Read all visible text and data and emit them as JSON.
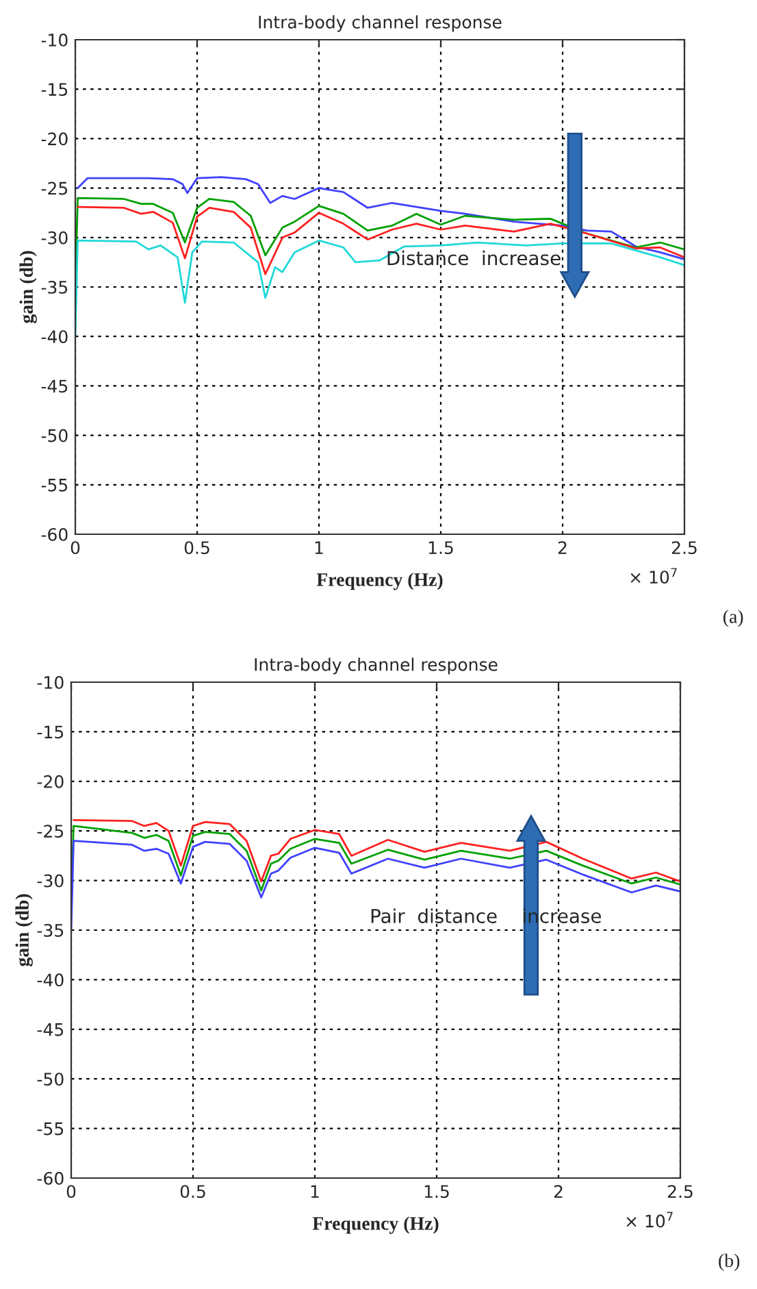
{
  "chart_data": [
    {
      "type": "line",
      "title": "Intra-body channel response",
      "xlabel": "Frequency (Hz)",
      "ylabel": "gain (db)",
      "xlim": [
        0,
        2.5
      ],
      "xticks": [
        0,
        0.5,
        1,
        1.5,
        2,
        2.5
      ],
      "ylim": [
        -60,
        -10
      ],
      "yticks": [
        -60,
        -55,
        -50,
        -45,
        -40,
        -35,
        -30,
        -25,
        -20,
        -15,
        -10
      ],
      "grid": true,
      "legend": false,
      "annotations": [
        "× 10$^{7}$",
        "Distance  increase",
        "(a)"
      ],
      "series": [
        {
          "color": "#4040ff",
          "x": [
            0.01,
            0.05,
            0.3,
            0.4,
            0.44,
            0.46,
            0.5,
            0.6,
            0.7,
            0.75,
            0.8,
            0.85,
            0.9,
            1.0,
            1.1,
            1.2,
            1.3,
            1.5,
            1.6,
            1.8,
            2.0,
            2.1,
            2.2,
            2.3,
            2.4,
            2.5
          ],
          "values": [
            -25,
            -24,
            -24,
            -24.1,
            -24.6,
            -25.5,
            -24,
            -23.9,
            -24.1,
            -24.6,
            -26.5,
            -25.8,
            -26.1,
            -25,
            -25.4,
            -27,
            -26.5,
            -27.3,
            -27.6,
            -28.4,
            -28.8,
            -29.3,
            -29.4,
            -30.9,
            -31.5,
            -32.2
          ]
        },
        {
          "color": "#00a000",
          "x": [
            0,
            0.01,
            0.2,
            0.27,
            0.32,
            0.4,
            0.45,
            0.5,
            0.55,
            0.65,
            0.72,
            0.78,
            0.85,
            0.9,
            1.0,
            1.1,
            1.2,
            1.3,
            1.4,
            1.5,
            1.6,
            1.8,
            1.95,
            2.1,
            2.3,
            2.4,
            2.5
          ],
          "values": [
            -35,
            -26,
            -26.1,
            -26.6,
            -26.6,
            -27.5,
            -30.5,
            -27,
            -26.1,
            -26.4,
            -27.8,
            -31.8,
            -29,
            -28.4,
            -26.8,
            -27.6,
            -29.3,
            -28.8,
            -27.6,
            -28.7,
            -27.8,
            -28.2,
            -28.1,
            -29.6,
            -31,
            -30.5,
            -31.2
          ]
        },
        {
          "color": "#ff2020",
          "x": [
            0.01,
            0.2,
            0.27,
            0.32,
            0.4,
            0.45,
            0.5,
            0.55,
            0.65,
            0.72,
            0.78,
            0.85,
            0.9,
            1.0,
            1.1,
            1.2,
            1.3,
            1.4,
            1.5,
            1.6,
            1.8,
            1.95,
            2.1,
            2.3,
            2.4,
            2.5
          ],
          "values": [
            -26.9,
            -27,
            -27.6,
            -27.4,
            -28.5,
            -32.1,
            -27.9,
            -27,
            -27.4,
            -29,
            -33.7,
            -30,
            -29.5,
            -27.5,
            -28.6,
            -30.2,
            -29.2,
            -28.6,
            -29.2,
            -28.8,
            -29.4,
            -28.6,
            -29.6,
            -31.1,
            -31,
            -32
          ]
        },
        {
          "color": "#20d8d8",
          "x": [
            0,
            0.01,
            0.25,
            0.3,
            0.35,
            0.42,
            0.45,
            0.48,
            0.52,
            0.65,
            0.75,
            0.78,
            0.82,
            0.85,
            0.9,
            1.0,
            1.1,
            1.15,
            1.25,
            1.35,
            1.5,
            1.65,
            1.85,
            2.0,
            2.2,
            2.3,
            2.4,
            2.5
          ],
          "values": [
            -40,
            -30.3,
            -30.4,
            -31.2,
            -30.8,
            -32,
            -36.6,
            -31.5,
            -30.4,
            -30.5,
            -32.5,
            -36.1,
            -33,
            -33.5,
            -31.5,
            -30.3,
            -31,
            -32.5,
            -32.3,
            -30.9,
            -30.8,
            -30.5,
            -30.8,
            -30.6,
            -30.6,
            -31.3,
            -32,
            -32.8
          ]
        }
      ]
    },
    {
      "type": "line",
      "title": "Intra-body channel response",
      "xlabel": "Frequency (Hz)",
      "ylabel": "gain (db)",
      "xlim": [
        0,
        2.5
      ],
      "xticks": [
        0,
        0.5,
        1,
        1.5,
        2,
        2.5
      ],
      "ylim": [
        -60,
        -10
      ],
      "yticks": [
        -60,
        -55,
        -50,
        -45,
        -40,
        -35,
        -30,
        -25,
        -20,
        -15,
        -10
      ],
      "grid": true,
      "legend": false,
      "annotations": [
        "× 10$^{7}$",
        "Pair  distance    increase",
        "(b)"
      ],
      "series": [
        {
          "color": "#ff2020",
          "x": [
            0.01,
            0.25,
            0.3,
            0.35,
            0.4,
            0.45,
            0.5,
            0.55,
            0.65,
            0.72,
            0.78,
            0.82,
            0.85,
            0.9,
            1.0,
            1.1,
            1.15,
            1.3,
            1.45,
            1.6,
            1.8,
            1.95,
            2.1,
            2.3,
            2.4,
            2.5
          ],
          "values": [
            -23.9,
            -24,
            -24.5,
            -24.2,
            -25,
            -28.5,
            -24.5,
            -24.1,
            -24.3,
            -26,
            -30.1,
            -27.5,
            -27.3,
            -25.8,
            -24.9,
            -25.3,
            -27.5,
            -25.9,
            -27.1,
            -26.2,
            -27,
            -26.1,
            -27.8,
            -29.8,
            -29.2,
            -30.1
          ]
        },
        {
          "color": "#00a000",
          "x": [
            0,
            0.01,
            0.25,
            0.3,
            0.35,
            0.4,
            0.45,
            0.5,
            0.55,
            0.65,
            0.72,
            0.78,
            0.82,
            0.85,
            0.9,
            1.0,
            1.1,
            1.15,
            1.3,
            1.45,
            1.6,
            1.8,
            1.95,
            2.1,
            2.3,
            2.4,
            2.5
          ],
          "values": [
            -32,
            -24.5,
            -25.2,
            -25.7,
            -25.4,
            -26,
            -29.5,
            -25.5,
            -25.1,
            -25.3,
            -27,
            -31,
            -28.3,
            -28,
            -26.8,
            -25.8,
            -26.2,
            -28.3,
            -26.9,
            -27.9,
            -27,
            -27.8,
            -27,
            -28.5,
            -30.3,
            -29.7,
            -30.4
          ]
        },
        {
          "color": "#4040ff",
          "x": [
            0,
            0.01,
            0.25,
            0.3,
            0.35,
            0.4,
            0.45,
            0.5,
            0.55,
            0.65,
            0.72,
            0.78,
            0.82,
            0.85,
            0.9,
            1.0,
            1.1,
            1.15,
            1.3,
            1.45,
            1.6,
            1.8,
            1.95,
            2.1,
            2.3,
            2.4,
            2.5
          ],
          "values": [
            -35,
            -26,
            -26.4,
            -27,
            -26.8,
            -27.3,
            -30.3,
            -26.6,
            -26.1,
            -26.3,
            -28,
            -31.7,
            -29.3,
            -29,
            -27.7,
            -26.7,
            -27.2,
            -29.3,
            -27.8,
            -28.7,
            -27.8,
            -28.7,
            -27.9,
            -29.4,
            -31.2,
            -30.5,
            -31.1
          ]
        }
      ]
    }
  ]
}
